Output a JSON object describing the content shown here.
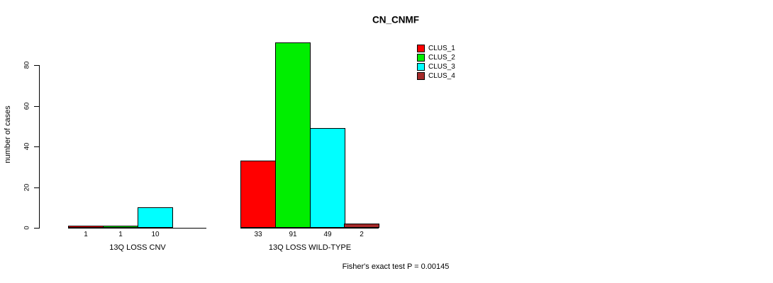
{
  "chart_data": {
    "type": "bar",
    "title": "CN_CNMF",
    "ylabel": "number of cases",
    "ylim": [
      0,
      91
    ],
    "yticks": [
      0,
      20,
      40,
      60,
      80
    ],
    "grid": false,
    "legend_position": "top-right",
    "categories": [
      "13Q LOSS CNV",
      "13Q LOSS WILD-TYPE"
    ],
    "series": [
      {
        "name": "CLUS_1",
        "color": "#FF0000",
        "values": [
          1,
          33
        ]
      },
      {
        "name": "CLUS_2",
        "color": "#00EE00",
        "values": [
          1,
          91
        ]
      },
      {
        "name": "CLUS_3",
        "color": "#00FFFF",
        "values": [
          10,
          49
        ]
      },
      {
        "name": "CLUS_4",
        "color": "#A52A2A",
        "values": [
          null,
          2
        ]
      }
    ],
    "annotation": "Fisher's exact test P = 0.00145"
  }
}
